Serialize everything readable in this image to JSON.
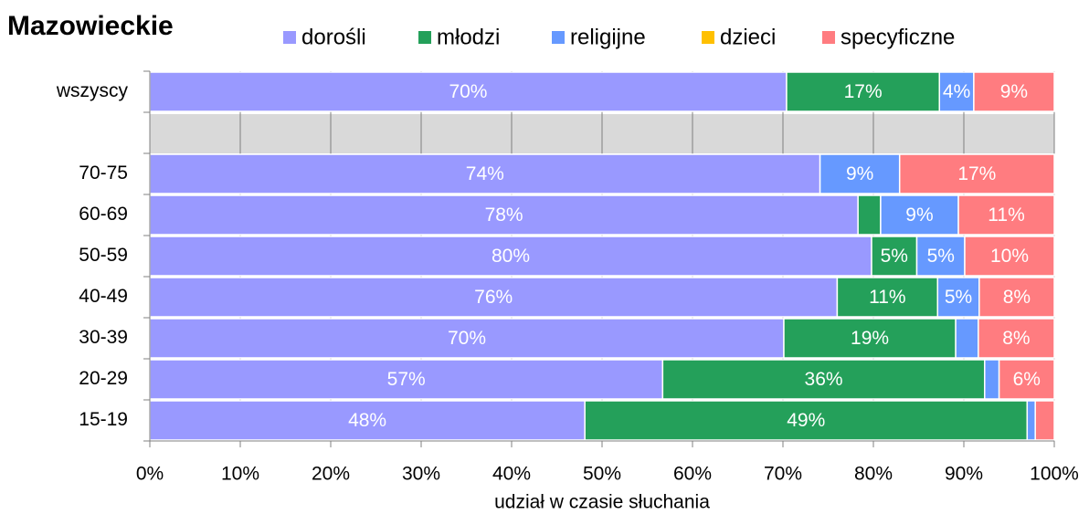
{
  "chart_data": {
    "type": "stacked-bar-horizontal",
    "title": "Mazowieckie",
    "x_label": "udział w czasie słuchania",
    "categories": [
      "wszyscy",
      null,
      "70-75",
      "60-69",
      "50-59",
      "40-49",
      "30-39",
      "20-29",
      "15-19"
    ],
    "series": [
      {
        "name": "dorośli",
        "color": "#9999ff",
        "values": [
          70.4,
          null,
          74.1,
          78.3,
          79.8,
          76.0,
          70.1,
          56.7,
          48.1
        ],
        "value_labels": [
          "70%",
          null,
          "74%",
          "78%",
          "80%",
          "76%",
          "70%",
          "57%",
          "48%"
        ]
      },
      {
        "name": "młodzi",
        "color": "#24a05a",
        "values": [
          16.9,
          null,
          0,
          2.5,
          5.0,
          11.1,
          19.0,
          35.6,
          48.9
        ],
        "value_labels": [
          "17%",
          null,
          null,
          null,
          "5%",
          "11%",
          "19%",
          "36%",
          "49%"
        ]
      },
      {
        "name": "religijne",
        "color": "#6699ff",
        "values": [
          3.8,
          null,
          8.8,
          8.6,
          5.3,
          4.6,
          2.5,
          1.6,
          0.9
        ],
        "value_labels": [
          "4%",
          null,
          "9%",
          "9%",
          "5%",
          "5%",
          null,
          null,
          null
        ]
      },
      {
        "name": "dzieci",
        "color": "#ffc000",
        "values": [
          0,
          null,
          0,
          0,
          0,
          0,
          0,
          0,
          0
        ],
        "value_labels": [
          null,
          null,
          null,
          null,
          null,
          null,
          null,
          null,
          null
        ]
      },
      {
        "name": "specyficzne",
        "color": "#ff7c80",
        "values": [
          8.9,
          null,
          17.1,
          10.6,
          9.9,
          8.3,
          8.4,
          6.1,
          2.1
        ],
        "value_labels": [
          "9%",
          null,
          "17%",
          "11%",
          "10%",
          "8%",
          "8%",
          "6%",
          null
        ]
      }
    ],
    "xlim": [
      0,
      100
    ],
    "xticks": [
      {
        "value": 0,
        "label": "0%"
      },
      {
        "value": 10,
        "label": "10%"
      },
      {
        "value": 20,
        "label": "20%"
      },
      {
        "value": 30,
        "label": "30%"
      },
      {
        "value": 40,
        "label": "40%"
      },
      {
        "value": 50,
        "label": "50%"
      },
      {
        "value": 60,
        "label": "60%"
      },
      {
        "value": 70,
        "label": "70%"
      },
      {
        "value": 80,
        "label": "80%"
      },
      {
        "value": 90,
        "label": "90%"
      },
      {
        "value": 100,
        "label": "100%"
      }
    ],
    "grid": true
  }
}
